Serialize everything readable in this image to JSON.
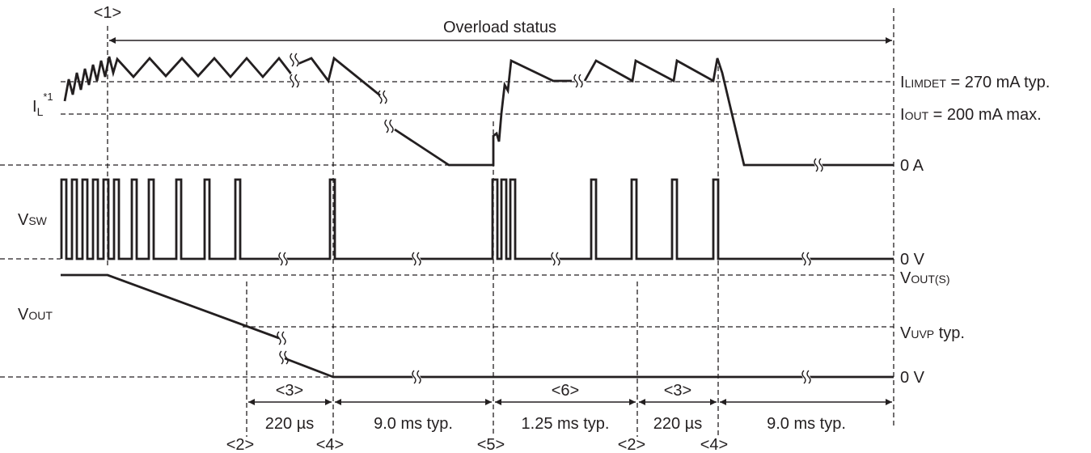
{
  "markers": {
    "m1": "<1>",
    "m2a": "<2>",
    "m2b": "<2>",
    "m3a": "<3>",
    "m3b": "<3>",
    "m4a": "<4>",
    "m4b": "<4>",
    "m5": "<5>",
    "m6": "<6>"
  },
  "title": "Overload status",
  "signals": {
    "il": {
      "main": "I",
      "sub": "L",
      "sup": "*1"
    },
    "vsw": {
      "main": "V",
      "sub": "SW"
    },
    "vout": {
      "main": "V",
      "sub": "OUT"
    }
  },
  "levels": {
    "ilimdet": {
      "main": "I",
      "sub": "LIMDET",
      "rest": " = 270 mA typ."
    },
    "iout": {
      "main": "I",
      "sub": "OUT",
      "rest": " = 200 mA max."
    },
    "zero_a": "0 A",
    "zero_v_sw": "0 V",
    "vout_s": {
      "main": "V",
      "sub": "OUT(S)"
    },
    "vuvp": {
      "main": "V",
      "sub": "UVP",
      "rest": " typ."
    },
    "zero_v_out": "0 V"
  },
  "durations": {
    "d1": "220 µs",
    "d2": "9.0 ms typ.",
    "d3": "1.25 ms typ.",
    "d4": "220 µs",
    "d5": "9.0 ms typ."
  }
}
